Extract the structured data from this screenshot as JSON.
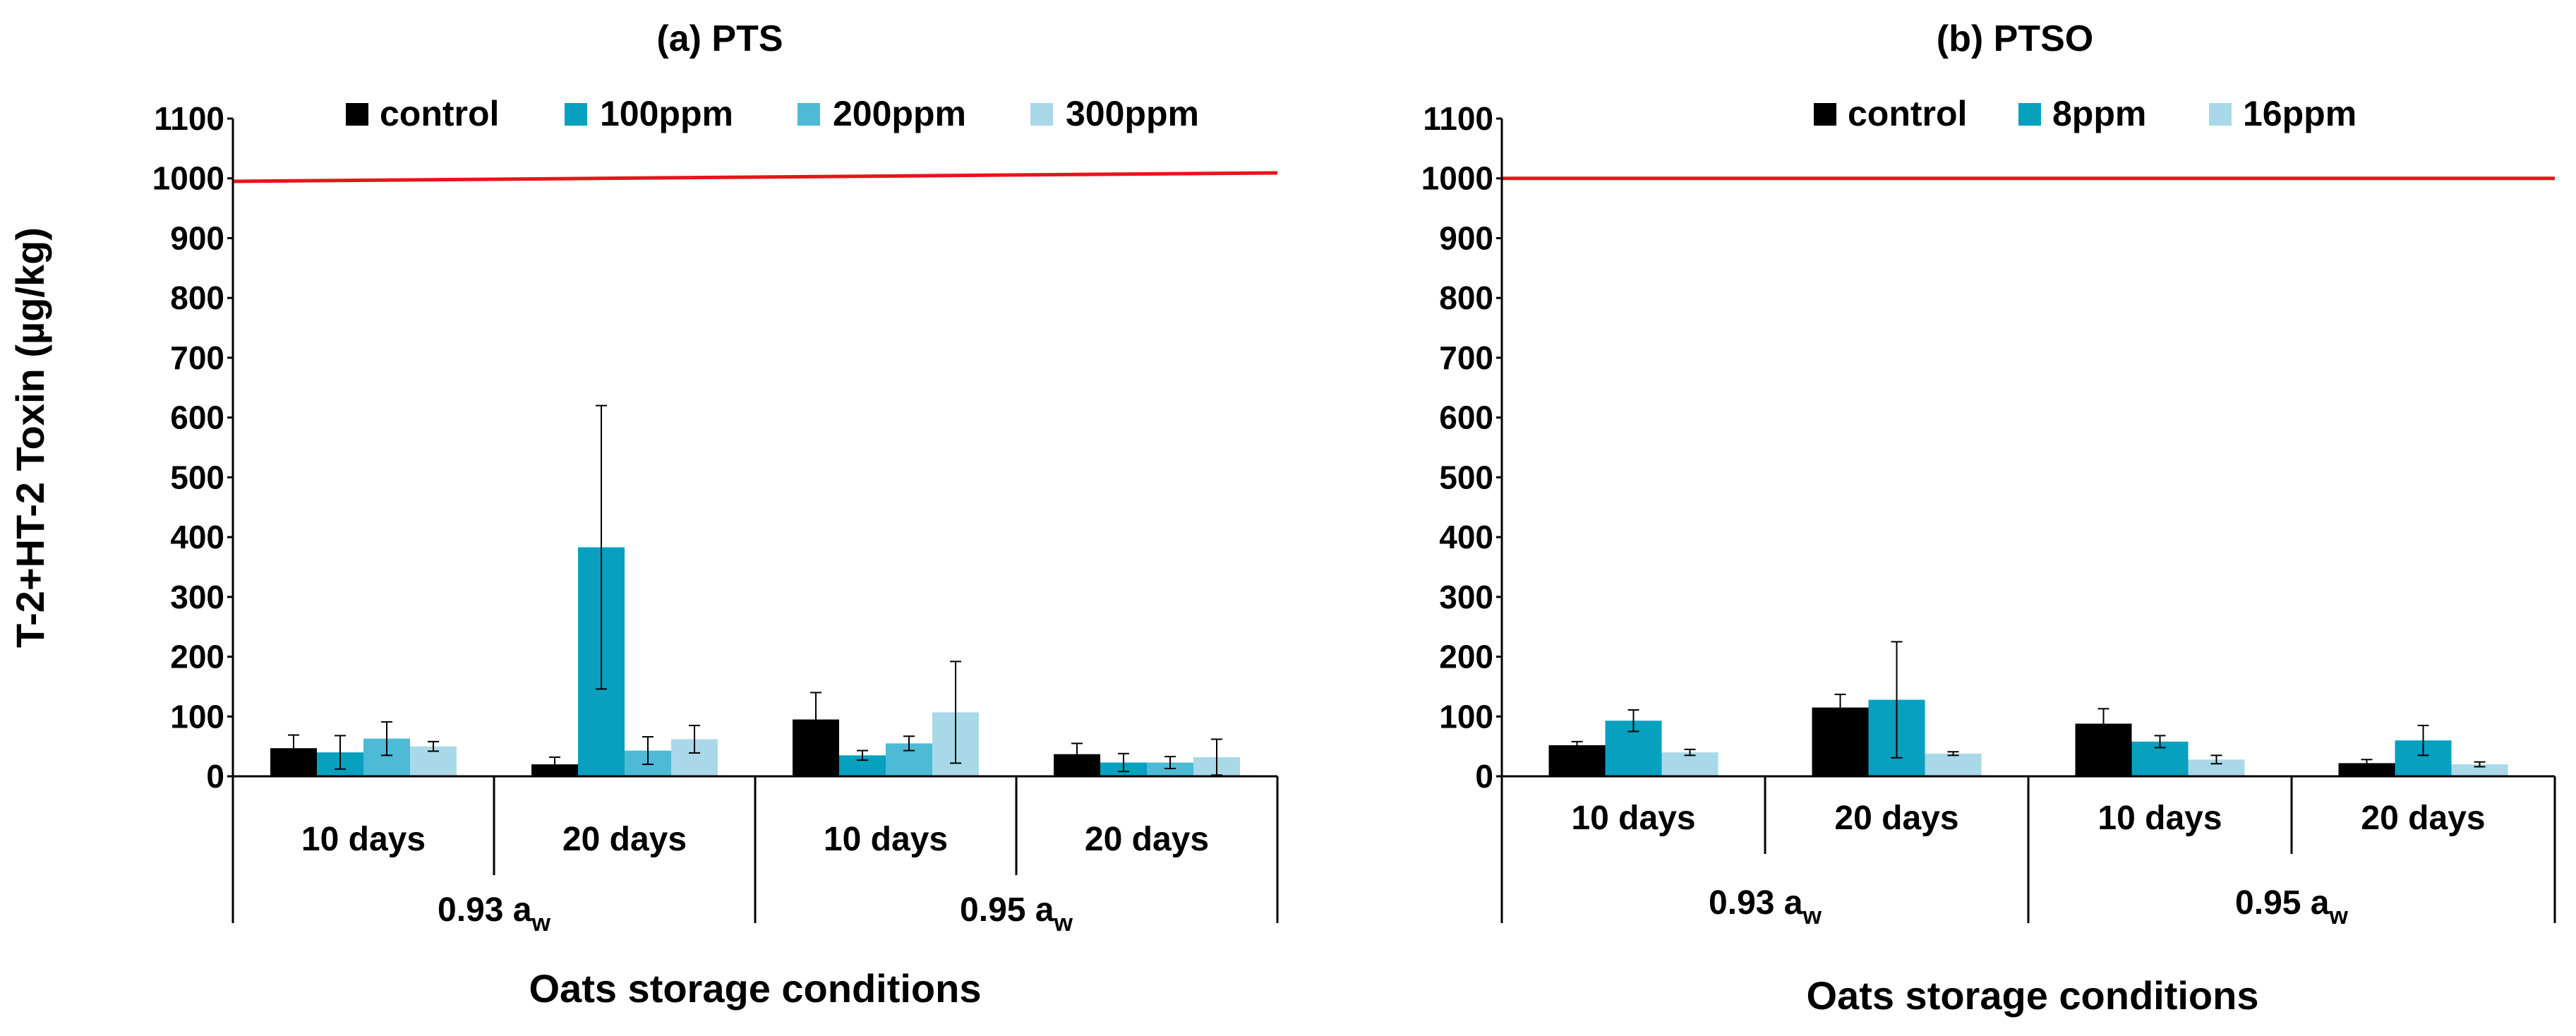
{
  "figure": {
    "y_axis_title": "T-2+HT-2 Toxin (µg/kg)"
  },
  "chart_data": [
    {
      "type": "bar",
      "title": "(a) PTS",
      "xlabel": "Oats storage conditions",
      "ylabel": "T-2+HT-2 Toxin (µg/kg)",
      "ylim": [
        0,
        1100
      ],
      "yticks": [
        0,
        100,
        200,
        300,
        400,
        500,
        600,
        700,
        800,
        900,
        1000,
        1100
      ],
      "legend_position": "top",
      "threshold_line": {
        "value": 995,
        "color": "#e8141b"
      },
      "categories": [
        "10 days",
        "20 days",
        "10 days",
        "20 days"
      ],
      "groups": [
        {
          "label": "0.93 a",
          "subscript": "w",
          "categories": [
            0,
            1
          ]
        },
        {
          "label": "0.95 a",
          "subscript": "w",
          "categories": [
            2,
            3
          ]
        }
      ],
      "series": [
        {
          "name": "control",
          "color": "#000000",
          "values": [
            47,
            20,
            95,
            37
          ],
          "errors": [
            22,
            12,
            45,
            18
          ]
        },
        {
          "name": "100ppm",
          "color": "#07a0bf",
          "values": [
            40,
            383,
            35,
            23
          ],
          "errors": [
            28,
            237,
            8,
            15
          ]
        },
        {
          "name": "200ppm",
          "color": "#4dbad6",
          "values": [
            63,
            43,
            55,
            23
          ],
          "errors": [
            28,
            23,
            12,
            10
          ]
        },
        {
          "name": "300ppm",
          "color": "#a9d9e8",
          "values": [
            50,
            62,
            107,
            32
          ],
          "errors": [
            8,
            23,
            85,
            30
          ]
        }
      ]
    },
    {
      "type": "bar",
      "title": "(b) PTSO",
      "xlabel": "Oats storage conditions",
      "ylabel": "",
      "ylim": [
        0,
        1100
      ],
      "yticks": [
        0,
        100,
        200,
        300,
        400,
        500,
        600,
        700,
        800,
        900,
        1000,
        1100
      ],
      "legend_position": "top",
      "threshold_line": {
        "value": 1000,
        "color": "#e8141b"
      },
      "categories": [
        "10 days",
        "20 days",
        "10 days",
        "20 days"
      ],
      "groups": [
        {
          "label": "0.93 a",
          "subscript": "w",
          "categories": [
            0,
            1
          ]
        },
        {
          "label": "0.95 a",
          "subscript": "w",
          "categories": [
            2,
            3
          ]
        }
      ],
      "series": [
        {
          "name": "control",
          "color": "#000000",
          "values": [
            52,
            115,
            88,
            22
          ],
          "errors": [
            6,
            22,
            25,
            6
          ]
        },
        {
          "name": "8ppm",
          "color": "#07a0bf",
          "values": [
            93,
            128,
            58,
            60
          ],
          "errors": [
            18,
            97,
            10,
            25
          ]
        },
        {
          "name": "16ppm",
          "color": "#a9d9e8",
          "values": [
            40,
            38,
            28,
            20
          ],
          "errors": [
            5,
            3,
            7,
            4
          ]
        }
      ]
    }
  ]
}
